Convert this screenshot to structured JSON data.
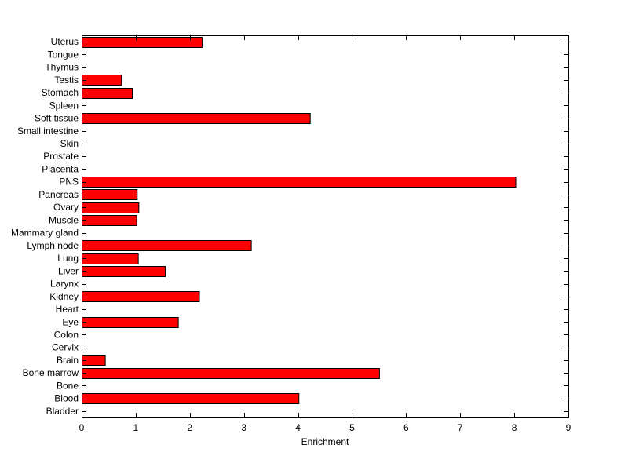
{
  "chart_data": {
    "type": "bar",
    "orientation": "horizontal",
    "title": "",
    "xlabel": "Enrichment",
    "ylabel": "",
    "xlim": [
      0,
      9
    ],
    "xticks": [
      "0",
      "1",
      "2",
      "3",
      "4",
      "5",
      "6",
      "7",
      "8",
      "9"
    ],
    "grid": false,
    "bar_color": "#ff0000",
    "categories": [
      "Uterus",
      "Tongue",
      "Thymus",
      "Testis",
      "Stomach",
      "Spleen",
      "Soft tissue",
      "Small intestine",
      "Skin",
      "Prostate",
      "Placenta",
      "PNS",
      "Pancreas",
      "Ovary",
      "Muscle",
      "Mammary gland",
      "Lymph node",
      "Lung",
      "Liver",
      "Larynx",
      "Kidney",
      "Heart",
      "Eye",
      "Colon",
      "Cervix",
      "Brain",
      "Bone marrow",
      "Bone",
      "Blood",
      "Bladder"
    ],
    "values": [
      2.22,
      0,
      0,
      0.73,
      0.93,
      0,
      4.22,
      0,
      0,
      0,
      0,
      8.02,
      1.02,
      1.05,
      1.01,
      0,
      3.13,
      1.04,
      1.54,
      0,
      2.17,
      0,
      1.78,
      0,
      0,
      0.43,
      5.5,
      0,
      4.01,
      0
    ]
  }
}
